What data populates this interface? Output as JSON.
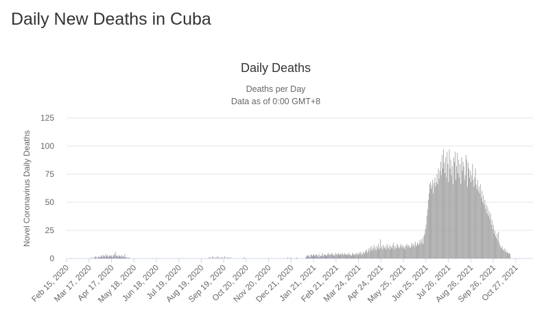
{
  "page": {
    "heading": "Daily New Deaths in Cuba"
  },
  "colors": {
    "bar": "#a3a3a3",
    "bar_edge": "#8f8fa3",
    "grid": "#e6e6e6",
    "axis_text": "#666666",
    "title_text": "#333333"
  },
  "chart_data": {
    "type": "bar",
    "title": "Daily Deaths",
    "subtitle_line1": "Deaths per Day",
    "subtitle_line2": "Data as of 0:00 GMT+8",
    "ylabel": "Novel Coronavirus Daily Deaths",
    "xlabel": "",
    "ylim": [
      0,
      125
    ],
    "yticks": [
      0,
      25,
      50,
      75,
      100,
      125
    ],
    "grid": true,
    "legend": "none",
    "start_date": "2020-02-15",
    "days": 644,
    "xtick_labels": [
      "Feb 15, 2020",
      "Mar 17, 2020",
      "Apr 17, 2020",
      "May 18, 2020",
      "Jun 18, 2020",
      "Jul 19, 2020",
      "Aug 19, 2020",
      "Sep 19, 2020",
      "Oct 20, 2020",
      "Nov 20, 2020",
      "Dec 21, 2020",
      "Jan 21, 2021",
      "Feb 21, 2021",
      "Mar 24, 2021",
      "Apr 24, 2021",
      "May 25, 2021",
      "Jun 25, 2021",
      "Jul 26, 2021",
      "Aug 26, 2021",
      "Sep 26, 2021",
      "Oct 27, 2021"
    ],
    "xtick_days": [
      0,
      31,
      62,
      93,
      124,
      155,
      186,
      217,
      248,
      279,
      310,
      341,
      372,
      403,
      434,
      465,
      496,
      527,
      558,
      589,
      620
    ],
    "series": [
      {
        "name": "Daily Deaths",
        "values": [
          0,
          0,
          0,
          0,
          0,
          0,
          0,
          0,
          0,
          0,
          0,
          0,
          0,
          0,
          0,
          0,
          0,
          0,
          0,
          0,
          0,
          0,
          0,
          0,
          0,
          0,
          0,
          0,
          0,
          0,
          0,
          0,
          0,
          0,
          1,
          0,
          0,
          0,
          1,
          1,
          2,
          1,
          0,
          1,
          2,
          1,
          1,
          2,
          3,
          1,
          2,
          3,
          2,
          1,
          4,
          2,
          3,
          1,
          2,
          3,
          2,
          2,
          3,
          1,
          2,
          4,
          3,
          6,
          2,
          3,
          2,
          1,
          3,
          2,
          2,
          1,
          3,
          2,
          1,
          2,
          4,
          1,
          1,
          0,
          1,
          0,
          1,
          0,
          0,
          0,
          0,
          0,
          0,
          0,
          0,
          0,
          0,
          0,
          0,
          0,
          0,
          0,
          0,
          0,
          0,
          0,
          0,
          0,
          0,
          0,
          0,
          0,
          0,
          0,
          0,
          0,
          0,
          0,
          0,
          0,
          0,
          0,
          0,
          0,
          0,
          0,
          0,
          0,
          0,
          0,
          0,
          0,
          0,
          0,
          0,
          0,
          0,
          0,
          0,
          0,
          0,
          0,
          0,
          0,
          0,
          0,
          0,
          0,
          0,
          0,
          0,
          0,
          0,
          0,
          0,
          0,
          0,
          0,
          0,
          0,
          0,
          0,
          0,
          0,
          0,
          0,
          0,
          0,
          0,
          0,
          0,
          0,
          0,
          0,
          0,
          0,
          0,
          0,
          0,
          0,
          0,
          0,
          0,
          0,
          0,
          0,
          0,
          0,
          0,
          0,
          0,
          0,
          0,
          0,
          0,
          0,
          1,
          0,
          1,
          0,
          0,
          2,
          0,
          1,
          0,
          0,
          1,
          0,
          2,
          0,
          1,
          0,
          0,
          1,
          0,
          1,
          0,
          0,
          2,
          0,
          0,
          1,
          0,
          1,
          0,
          0,
          1,
          0,
          0,
          0,
          0,
          0,
          0,
          0,
          0,
          0,
          0,
          0,
          0,
          0,
          0,
          0,
          0,
          0,
          0,
          1,
          0,
          0,
          0,
          0,
          0,
          0,
          0,
          0,
          0,
          0,
          0,
          0,
          0,
          0,
          0,
          0,
          0,
          0,
          0,
          0,
          0,
          0,
          0,
          0,
          0,
          0,
          0,
          0,
          0,
          0,
          0,
          0,
          0,
          0,
          0,
          0,
          0,
          0,
          0,
          0,
          0,
          0,
          0,
          0,
          0,
          0,
          0,
          0,
          0,
          0,
          0,
          0,
          0,
          0,
          0,
          0,
          0,
          0,
          0,
          1,
          0,
          0,
          0,
          1,
          0,
          0,
          0,
          0,
          0,
          0,
          0,
          1,
          0,
          0,
          0,
          0,
          0,
          0,
          0,
          0,
          0,
          0,
          0,
          0,
          1,
          2,
          3,
          2,
          3,
          1,
          2,
          4,
          3,
          2,
          3,
          4,
          2,
          3,
          3,
          4,
          2,
          3,
          1,
          4,
          2,
          2,
          3,
          5,
          2,
          3,
          4,
          3,
          3,
          2,
          4,
          5,
          3,
          4,
          3,
          4,
          5,
          3,
          4,
          2,
          3,
          5,
          4,
          3,
          4,
          5,
          3,
          4,
          4,
          3,
          5,
          4,
          3,
          4,
          5,
          3,
          4,
          3,
          4,
          5,
          3,
          4,
          3,
          2,
          4,
          5,
          3,
          4,
          3,
          4,
          5,
          4,
          3,
          5,
          4,
          6,
          5,
          3,
          4,
          6,
          5,
          4,
          7,
          6,
          8,
          5,
          7,
          9,
          6,
          10,
          8,
          11,
          7,
          9,
          12,
          8,
          10,
          7,
          11,
          9,
          13,
          8,
          10,
          17,
          9,
          11,
          8,
          12,
          10,
          9,
          11,
          8,
          13,
          10,
          9,
          12,
          8,
          11,
          10,
          9,
          12,
          14,
          8,
          11,
          10,
          9,
          13,
          12,
          10,
          9,
          11,
          13,
          10,
          12,
          9,
          11,
          10,
          8,
          12,
          11,
          13,
          10,
          12,
          11,
          9,
          10,
          14,
          12,
          11,
          13,
          10,
          15,
          12,
          11,
          14,
          13,
          12,
          16,
          13,
          17,
          14,
          18,
          13,
          20,
          22,
          26,
          30,
          38,
          44,
          52,
          58,
          66,
          68,
          62,
          65,
          70,
          58,
          67,
          72,
          64,
          68,
          75,
          66,
          80,
          71,
          78,
          86,
          74,
          92,
          80,
          97,
          85,
          76,
          90,
          72,
          95,
          84,
          68,
          97,
          80,
          88,
          74,
          82,
          66,
          90,
          86,
          95,
          70,
          82,
          94,
          76,
          88,
          72,
          84,
          66,
          90,
          78,
          86,
          82,
          70,
          74,
          92,
          88,
          64,
          85,
          80,
          72,
          78,
          68,
          74,
          84,
          70,
          64,
          72,
          80,
          66,
          62,
          70,
          60,
          64,
          58,
          66,
          54,
          60,
          50,
          56,
          48,
          52,
          44,
          48,
          40,
          46,
          38,
          42,
          35,
          40,
          30,
          34,
          26,
          30,
          22,
          25,
          20,
          18,
          22,
          16,
          24,
          14,
          12,
          10,
          9,
          11,
          8,
          7,
          9,
          6,
          8,
          5,
          6,
          5,
          4,
          5,
          4
        ]
      }
    ]
  }
}
